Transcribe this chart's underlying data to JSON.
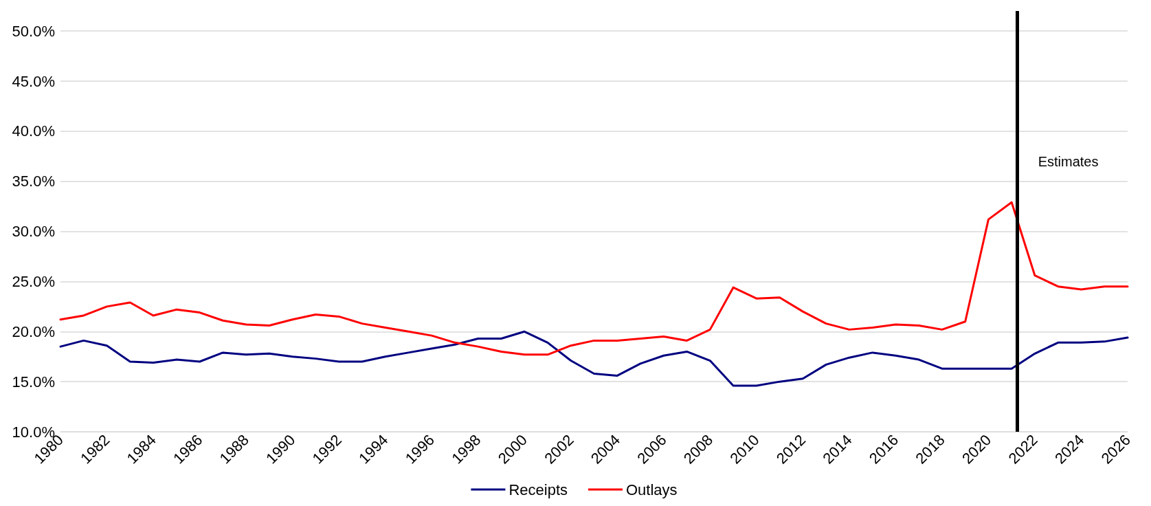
{
  "chart_data": {
    "type": "line",
    "x": [
      1980,
      1981,
      1982,
      1983,
      1984,
      1985,
      1986,
      1987,
      1988,
      1989,
      1990,
      1991,
      1992,
      1993,
      1994,
      1995,
      1996,
      1997,
      1998,
      1999,
      2000,
      2001,
      2002,
      2003,
      2004,
      2005,
      2006,
      2007,
      2008,
      2009,
      2010,
      2011,
      2012,
      2013,
      2014,
      2015,
      2016,
      2017,
      2018,
      2019,
      2020,
      2021,
      2022,
      2023,
      2024,
      2025,
      2026
    ],
    "series": [
      {
        "name": "Receipts",
        "color": "#000080",
        "values": [
          18.5,
          19.1,
          18.6,
          17.0,
          16.9,
          17.2,
          17.0,
          17.9,
          17.7,
          17.8,
          17.5,
          17.3,
          17.0,
          17.0,
          17.5,
          17.9,
          18.3,
          18.7,
          19.3,
          19.3,
          20.0,
          18.9,
          17.1,
          15.8,
          15.6,
          16.8,
          17.6,
          18.0,
          17.1,
          14.6,
          14.6,
          15.0,
          15.3,
          16.7,
          17.4,
          17.9,
          17.6,
          17.2,
          16.3,
          16.3,
          16.3,
          16.3,
          17.8,
          18.9,
          18.9,
          19.0,
          19.4
        ]
      },
      {
        "name": "Outlays",
        "color": "#ff0000",
        "values": [
          21.2,
          21.6,
          22.5,
          22.9,
          21.6,
          22.2,
          21.9,
          21.1,
          20.7,
          20.6,
          21.2,
          21.7,
          21.5,
          20.8,
          20.4,
          20.0,
          19.6,
          18.9,
          18.5,
          18.0,
          17.7,
          17.7,
          18.6,
          19.1,
          19.1,
          19.3,
          19.5,
          19.1,
          20.2,
          24.4,
          23.3,
          23.4,
          22.0,
          20.8,
          20.2,
          20.4,
          20.7,
          20.6,
          20.2,
          21.0,
          31.2,
          32.9,
          25.6,
          24.5,
          24.2,
          24.5,
          24.5
        ]
      }
    ],
    "xlim": [
      1980,
      2026
    ],
    "xticks": [
      1980,
      1982,
      1984,
      1986,
      1988,
      1990,
      1992,
      1994,
      1996,
      1998,
      2000,
      2002,
      2004,
      2006,
      2008,
      2010,
      2012,
      2014,
      2016,
      2018,
      2020,
      2022,
      2024,
      2026
    ],
    "ylim": [
      10,
      52
    ],
    "yticks": [
      {
        "value": 10,
        "label": "10.0%"
      },
      {
        "value": 15,
        "label": "15.0%"
      },
      {
        "value": 20,
        "label": "20.0%"
      },
      {
        "value": 25,
        "label": "25.0%"
      },
      {
        "value": 30,
        "label": "30.0%"
      },
      {
        "value": 35,
        "label": "35.0%"
      },
      {
        "value": 40,
        "label": "40.0%"
      },
      {
        "value": 45,
        "label": "45.0%"
      },
      {
        "value": 50,
        "label": "50.0%"
      }
    ],
    "ref_lines": [
      {
        "axis": "x",
        "value": 2021.25,
        "label": "Estimates",
        "color": "#000000"
      }
    ],
    "grid": "y",
    "legend": "bottom",
    "marker": "none",
    "line_style": "solid"
  }
}
